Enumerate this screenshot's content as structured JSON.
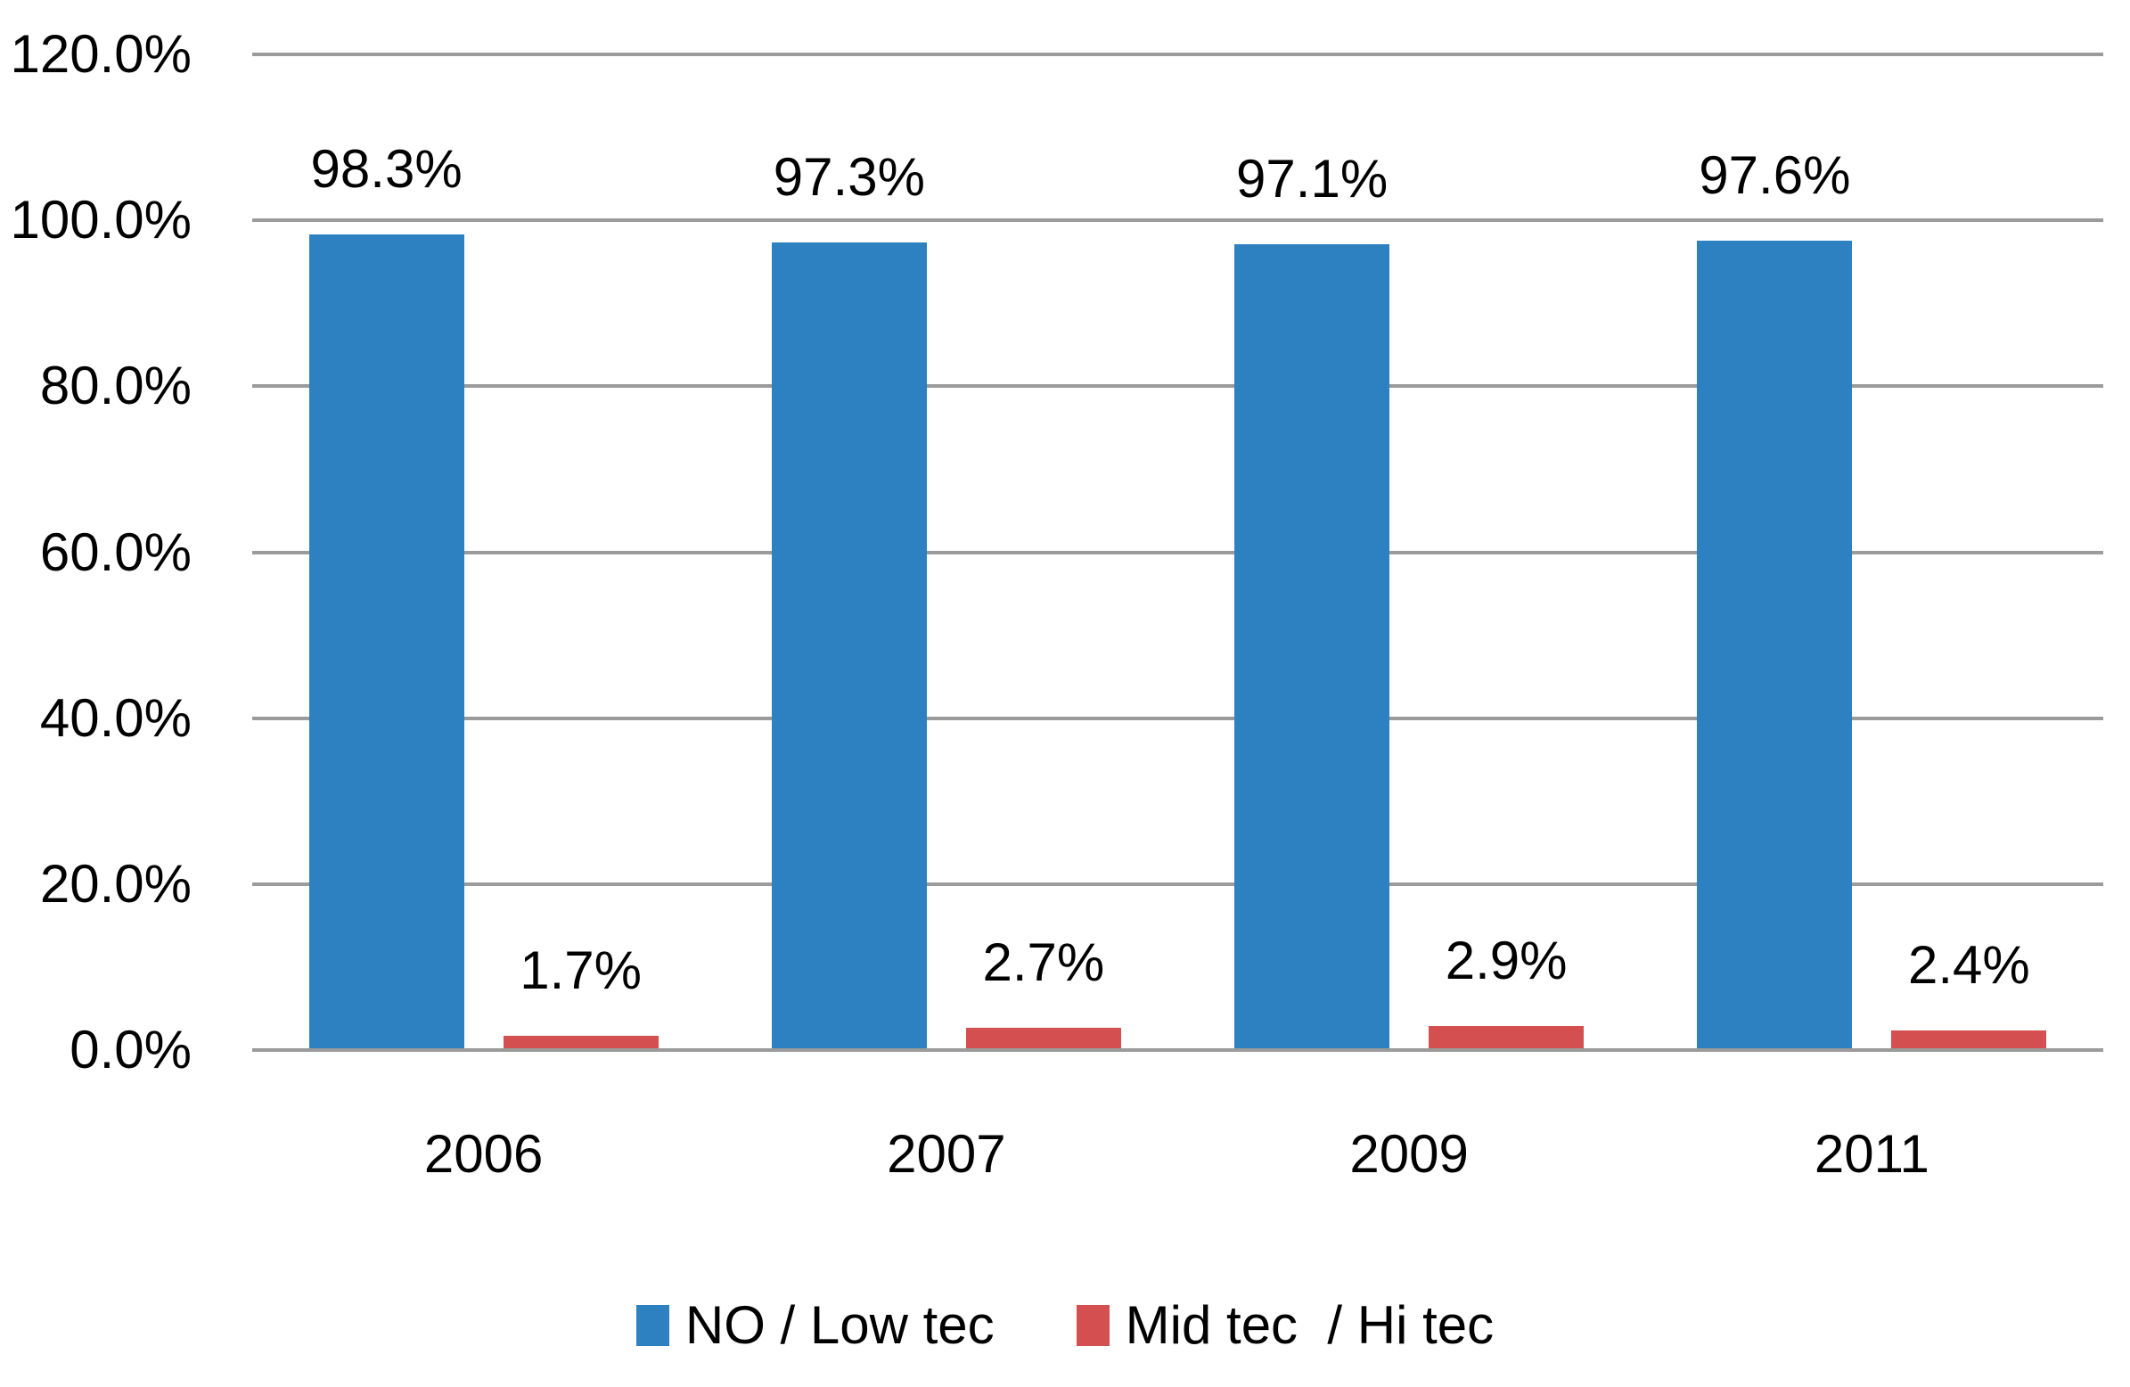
{
  "chart_data": {
    "type": "bar",
    "title": "",
    "xlabel": "",
    "ylabel": "",
    "categories": [
      "2006",
      "2007",
      "2009",
      "2011"
    ],
    "series": [
      {
        "name": "NO / Low tec",
        "color": "#2D81C0",
        "values": [
          98.3,
          97.3,
          97.1,
          97.6
        ],
        "data_labels": [
          "98.3%",
          "97.3%",
          "97.1%",
          "97.6%"
        ]
      },
      {
        "name": "Mid tec  / Hi tec",
        "color": "#D45050",
        "values": [
          1.7,
          2.7,
          2.9,
          2.4
        ],
        "data_labels": [
          "1.7%",
          "2.7%",
          "2.9%",
          "2.4%"
        ]
      }
    ],
    "ylim": [
      0,
      120
    ],
    "yticks": [
      "120.0%",
      "100.0%",
      "80.0%",
      "60.0%",
      "40.0%",
      "20.0%",
      "0.0%"
    ],
    "grid": true,
    "gridline_color": "#9b9b9b",
    "legend_position": "bottom",
    "background_color": "#ffffff",
    "text_color": "#000000"
  }
}
